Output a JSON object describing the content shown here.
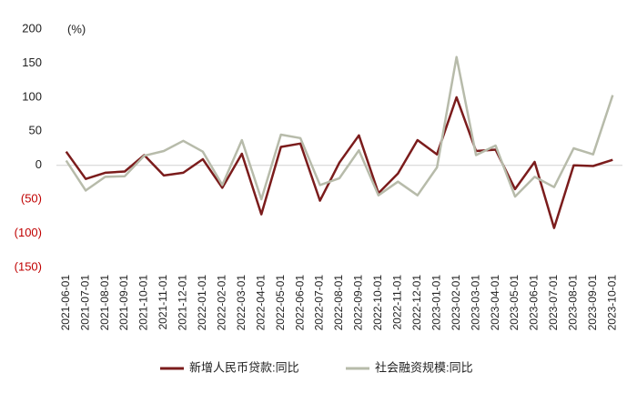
{
  "chart_data": {
    "type": "line",
    "unit_label": "(%)",
    "categories": [
      "2021-06-01",
      "2021-07-01",
      "2021-08-01",
      "2021-09-01",
      "2021-10-01",
      "2021-11-01",
      "2021-12-01",
      "2022-01-01",
      "2022-02-01",
      "2022-03-01",
      "2022-04-01",
      "2022-05-01",
      "2022-06-01",
      "2022-07-01",
      "2022-08-01",
      "2022-09-01",
      "2022-10-01",
      "2022-11-01",
      "2022-12-01",
      "2023-01-01",
      "2023-02-01",
      "2023-03-01",
      "2023-04-01",
      "2023-05-01",
      "2023-06-01",
      "2023-07-01",
      "2023-08-01",
      "2023-09-01",
      "2023-10-01"
    ],
    "series": [
      {
        "name": "新增人民币贷款:同比",
        "color": "#7b1c1c",
        "values": [
          20,
          -20,
          -11,
          -9,
          15,
          -15,
          -11,
          9,
          -33,
          17,
          -72,
          27,
          32,
          -52,
          4,
          44,
          -41,
          -12,
          37,
          16,
          100,
          21,
          23,
          -35,
          5,
          -92,
          0,
          -1,
          8
        ]
      },
      {
        "name": "社会融资规模:同比",
        "color": "#b7bbaa",
        "values": [
          7,
          -37,
          -17,
          -16,
          14,
          21,
          36,
          20,
          -29,
          37,
          -50,
          45,
          40,
          -29,
          -19,
          22,
          -44,
          -24,
          -44,
          -3,
          159,
          15,
          29,
          -46,
          -17,
          -32,
          25,
          16,
          103
        ]
      }
    ],
    "ylim": [
      -150,
      200
    ],
    "yticks": [
      {
        "value": -150,
        "label": "(150)"
      },
      {
        "value": -100,
        "label": "(100)"
      },
      {
        "value": -50,
        "label": "(50)"
      },
      0,
      50,
      100,
      150,
      200
    ],
    "negative_label_color": "#c00000",
    "legend": "bottom"
  }
}
